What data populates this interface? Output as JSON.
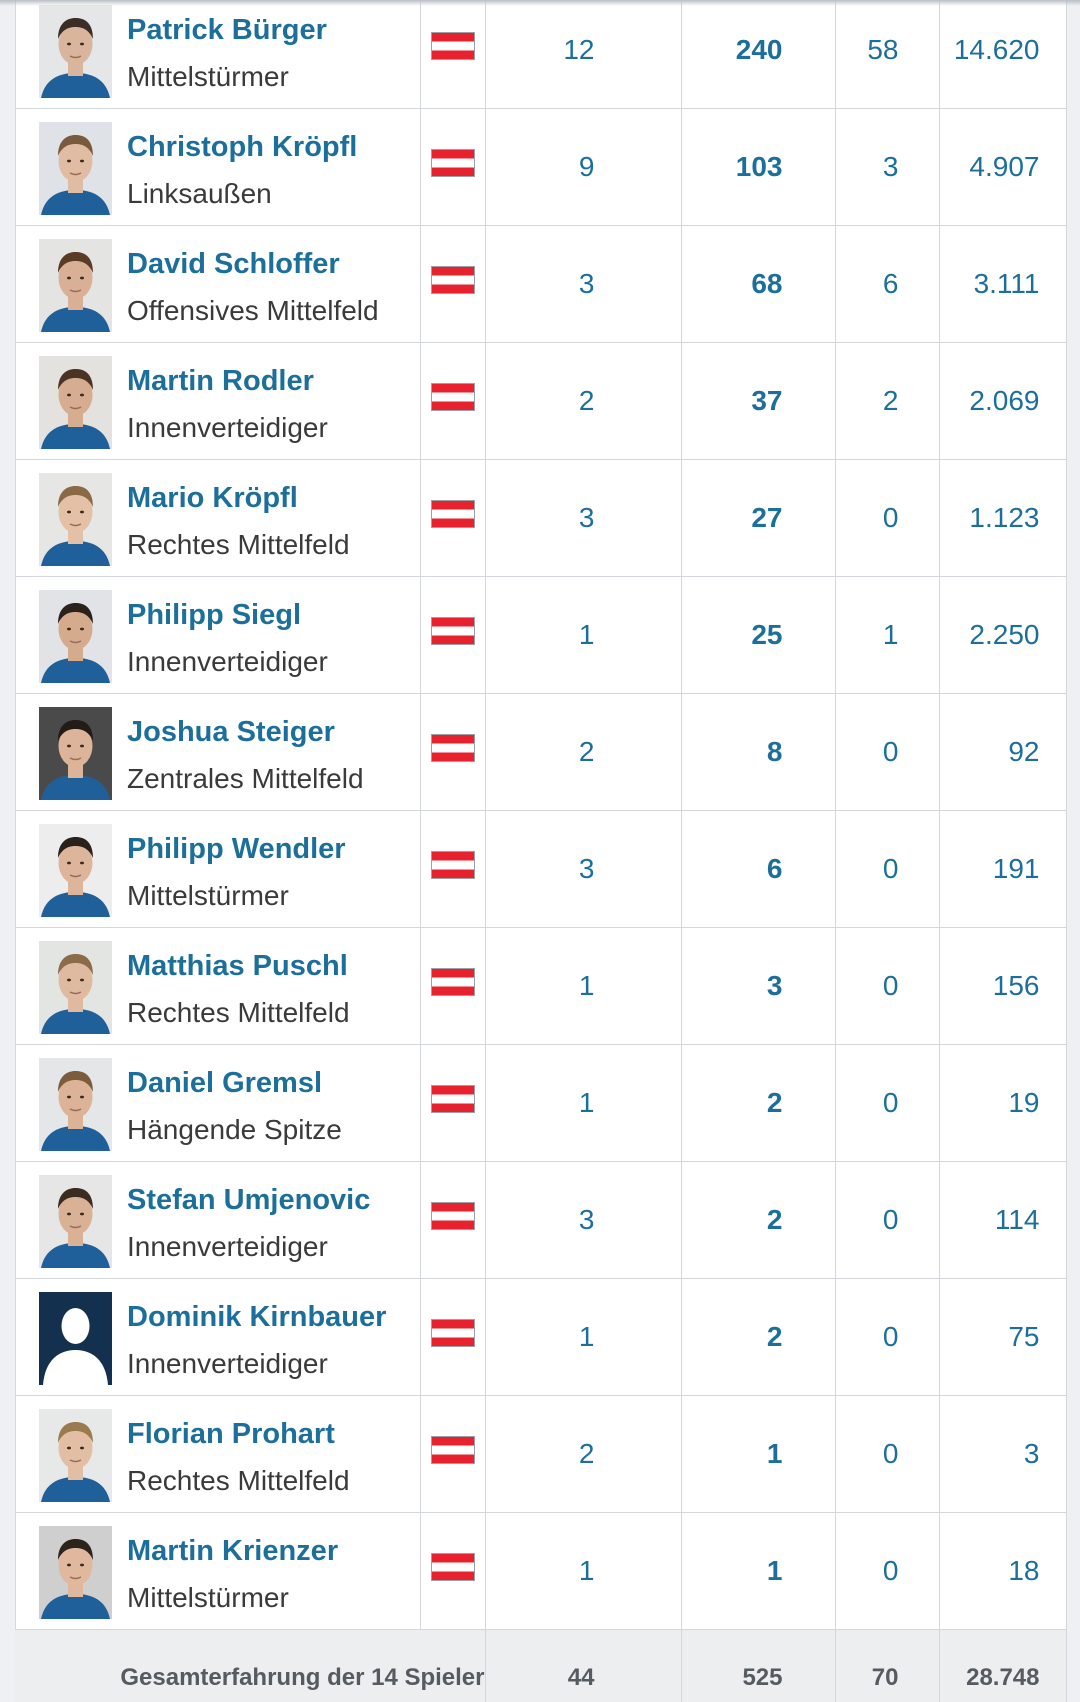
{
  "players": [
    {
      "name": "Patrick Bürger",
      "position": "Mittelstürmer",
      "nationality": "flag-austria",
      "games": "12",
      "bold_value": "240",
      "third_value": "58",
      "minutes": "14.620",
      "photo_skin": "#d8b59c",
      "photo_hair": "#3a2e26",
      "photo_bg": "#e4e6e8"
    },
    {
      "name": "Christoph Kröpfl",
      "position": "Linksaußen",
      "nationality": "flag-austria",
      "games": "9",
      "bold_value": "103",
      "third_value": "3",
      "minutes": "4.907",
      "photo_skin": "#e1bca4",
      "photo_hair": "#7a5a3c",
      "photo_bg": "#dfe3e8"
    },
    {
      "name": "David Schloffer",
      "position": "Offensives Mittelfeld",
      "nationality": "flag-austria",
      "games": "3",
      "bold_value": "68",
      "third_value": "6",
      "minutes": "3.111",
      "photo_skin": "#d9b095",
      "photo_hair": "#5a3b25",
      "photo_bg": "#e4e4e2"
    },
    {
      "name": "Martin Rodler",
      "position": "Innenverteidiger",
      "nationality": "flag-austria",
      "games": "2",
      "bold_value": "37",
      "third_value": "2",
      "minutes": "2.069",
      "photo_skin": "#d6ad90",
      "photo_hair": "#4a3424",
      "photo_bg": "#e3e2df"
    },
    {
      "name": "Mario Kröpfl",
      "position": "Rechtes Mittelfeld",
      "nationality": "flag-austria",
      "games": "3",
      "bold_value": "27",
      "third_value": "0",
      "minutes": "1.123",
      "photo_skin": "#e3c0a6",
      "photo_hair": "#8a6a45",
      "photo_bg": "#e6e6e4"
    },
    {
      "name": "Philipp Siegl",
      "position": "Innenverteidiger",
      "nationality": "flag-austria",
      "games": "1",
      "bold_value": "25",
      "third_value": "1",
      "minutes": "2.250",
      "photo_skin": "#d5ab8e",
      "photo_hair": "#2b221c",
      "photo_bg": "#e1e3e6"
    },
    {
      "name": "Joshua Steiger",
      "position": "Zentrales Mittelfeld",
      "nationality": "flag-austria",
      "games": "2",
      "bold_value": "8",
      "third_value": "0",
      "minutes": "92",
      "photo_skin": "#dcb49a",
      "photo_hair": "#221b17",
      "photo_bg": "#4a4a4a"
    },
    {
      "name": "Philipp Wendler",
      "position": "Mittelstürmer",
      "nationality": "flag-austria",
      "games": "3",
      "bold_value": "6",
      "third_value": "0",
      "minutes": "191",
      "photo_skin": "#ddb59b",
      "photo_hair": "#2a211b",
      "photo_bg": "#ededed"
    },
    {
      "name": "Matthias Puschl",
      "position": "Rechtes Mittelfeld",
      "nationality": "flag-austria",
      "games": "1",
      "bold_value": "3",
      "third_value": "0",
      "minutes": "156",
      "photo_skin": "#e0baa0",
      "photo_hair": "#8b6b48",
      "photo_bg": "#e3e5e3"
    },
    {
      "name": "Daniel Gremsl",
      "position": "Hängende Spitze",
      "nationality": "flag-austria",
      "games": "1",
      "bold_value": "2",
      "third_value": "0",
      "minutes": "19",
      "photo_skin": "#dcb397",
      "photo_hair": "#7c5c3c",
      "photo_bg": "#e4e6e8"
    },
    {
      "name": "Stefan Umjenovic",
      "position": "Innenverteidiger",
      "nationality": "flag-austria",
      "games": "3",
      "bold_value": "2",
      "third_value": "0",
      "minutes": "114",
      "photo_skin": "#d9b295",
      "photo_hair": "#3a2c22",
      "photo_bg": "#e6e6e6"
    },
    {
      "name": "Dominik Kirnbauer",
      "position": "Innenverteidiger",
      "nationality": "flag-austria",
      "games": "1",
      "bold_value": "2",
      "third_value": "0",
      "minutes": "75",
      "photo_skin": "silhouette",
      "photo_hair": "#ffffff",
      "photo_bg": "#13304f"
    },
    {
      "name": "Florian Prohart",
      "position": "Rechtes Mittelfeld",
      "nationality": "flag-austria",
      "games": "2",
      "bold_value": "1",
      "third_value": "0",
      "minutes": "3",
      "photo_skin": "#e2bea4",
      "photo_hair": "#9a7a4e",
      "photo_bg": "#e7e8e8"
    },
    {
      "name": "Martin Krienzer",
      "position": "Mittelstürmer",
      "nationality": "flag-austria",
      "games": "1",
      "bold_value": "1",
      "third_value": "0",
      "minutes": "18",
      "photo_skin": "#e0b89e",
      "photo_hair": "#2c231d",
      "photo_bg": "#cfcfcf"
    }
  ],
  "totals": {
    "label": "Gesamterfahrung der 14 Spieler",
    "games": "44",
    "bold_value": "525",
    "third_value": "70",
    "minutes": "28.748"
  },
  "colors": {
    "link": "#1d6f9b",
    "total_text": "#555b61",
    "flag_red": "#e8212e"
  }
}
